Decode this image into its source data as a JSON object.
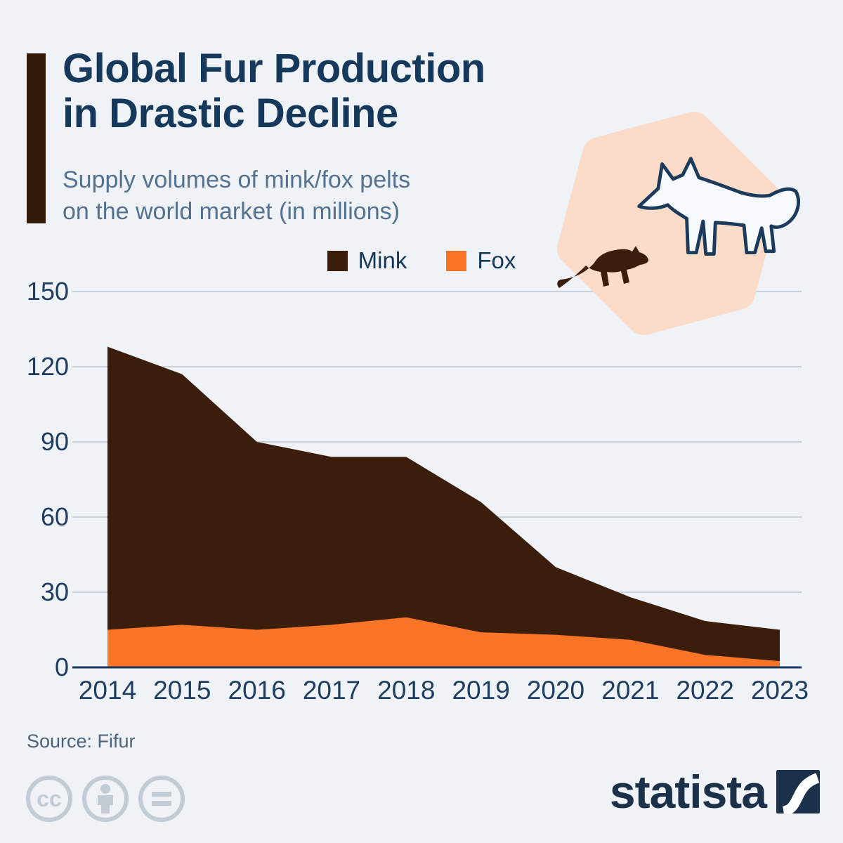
{
  "page": {
    "background": "#EFF3F8"
  },
  "header": {
    "title_line1": "Global Fur Production",
    "title_line2": "in Drastic Decline",
    "subtitle_line1": "Supply volumes of mink/fox pelts",
    "subtitle_line2": "on the world market (in millions)",
    "title_color": "#16395B",
    "subtitle_color": "#54718F",
    "accent_color": "#35190B"
  },
  "legend": {
    "items": [
      {
        "label": "Mink",
        "color": "#3B1D0C"
      },
      {
        "label": "Fox",
        "color": "#FA7428"
      }
    ]
  },
  "illustration": {
    "hexagon_color": "#FBDCC8",
    "fox_outline_color": "#1B3A5C",
    "fox_fill_color": "#F7FAFD",
    "mink_color": "#3B1D0C"
  },
  "chart_data": {
    "type": "area",
    "stacked": true,
    "title": "Supply volumes of mink/fox pelts on the world market (in millions)",
    "categories": [
      "2014",
      "2015",
      "2016",
      "2017",
      "2018",
      "2019",
      "2020",
      "2021",
      "2022",
      "2023"
    ],
    "series": [
      {
        "name": "Fox",
        "color": "#FA7428",
        "values": [
          15,
          17,
          15,
          17,
          20,
          14,
          13,
          11,
          5,
          2.5
        ]
      },
      {
        "name": "Mink",
        "color": "#3B1D0C",
        "values": [
          113,
          100,
          75,
          67,
          64,
          52,
          27,
          17,
          13.5,
          12.5
        ]
      }
    ],
    "totals": [
      128,
      117,
      90,
      84,
      84,
      66,
      40,
      28,
      18.5,
      15
    ],
    "xlabel": "",
    "ylabel": "",
    "yticks": [
      0,
      30,
      60,
      90,
      120,
      150
    ],
    "ylim": [
      0,
      150
    ],
    "grid": true,
    "legend_position": "top",
    "grid_color": "#C9D1DB",
    "axis_color": "#1B3A5C",
    "tick_label_color": "#1E3D60"
  },
  "footer": {
    "source": "Source: Fifur",
    "logo_text": "statista",
    "logo_color": "#1B3049",
    "cc_icons": [
      "cc-license-icon",
      "cc-by-icon",
      "cc-nd-icon"
    ],
    "cc_color": "#C3CCD5"
  }
}
